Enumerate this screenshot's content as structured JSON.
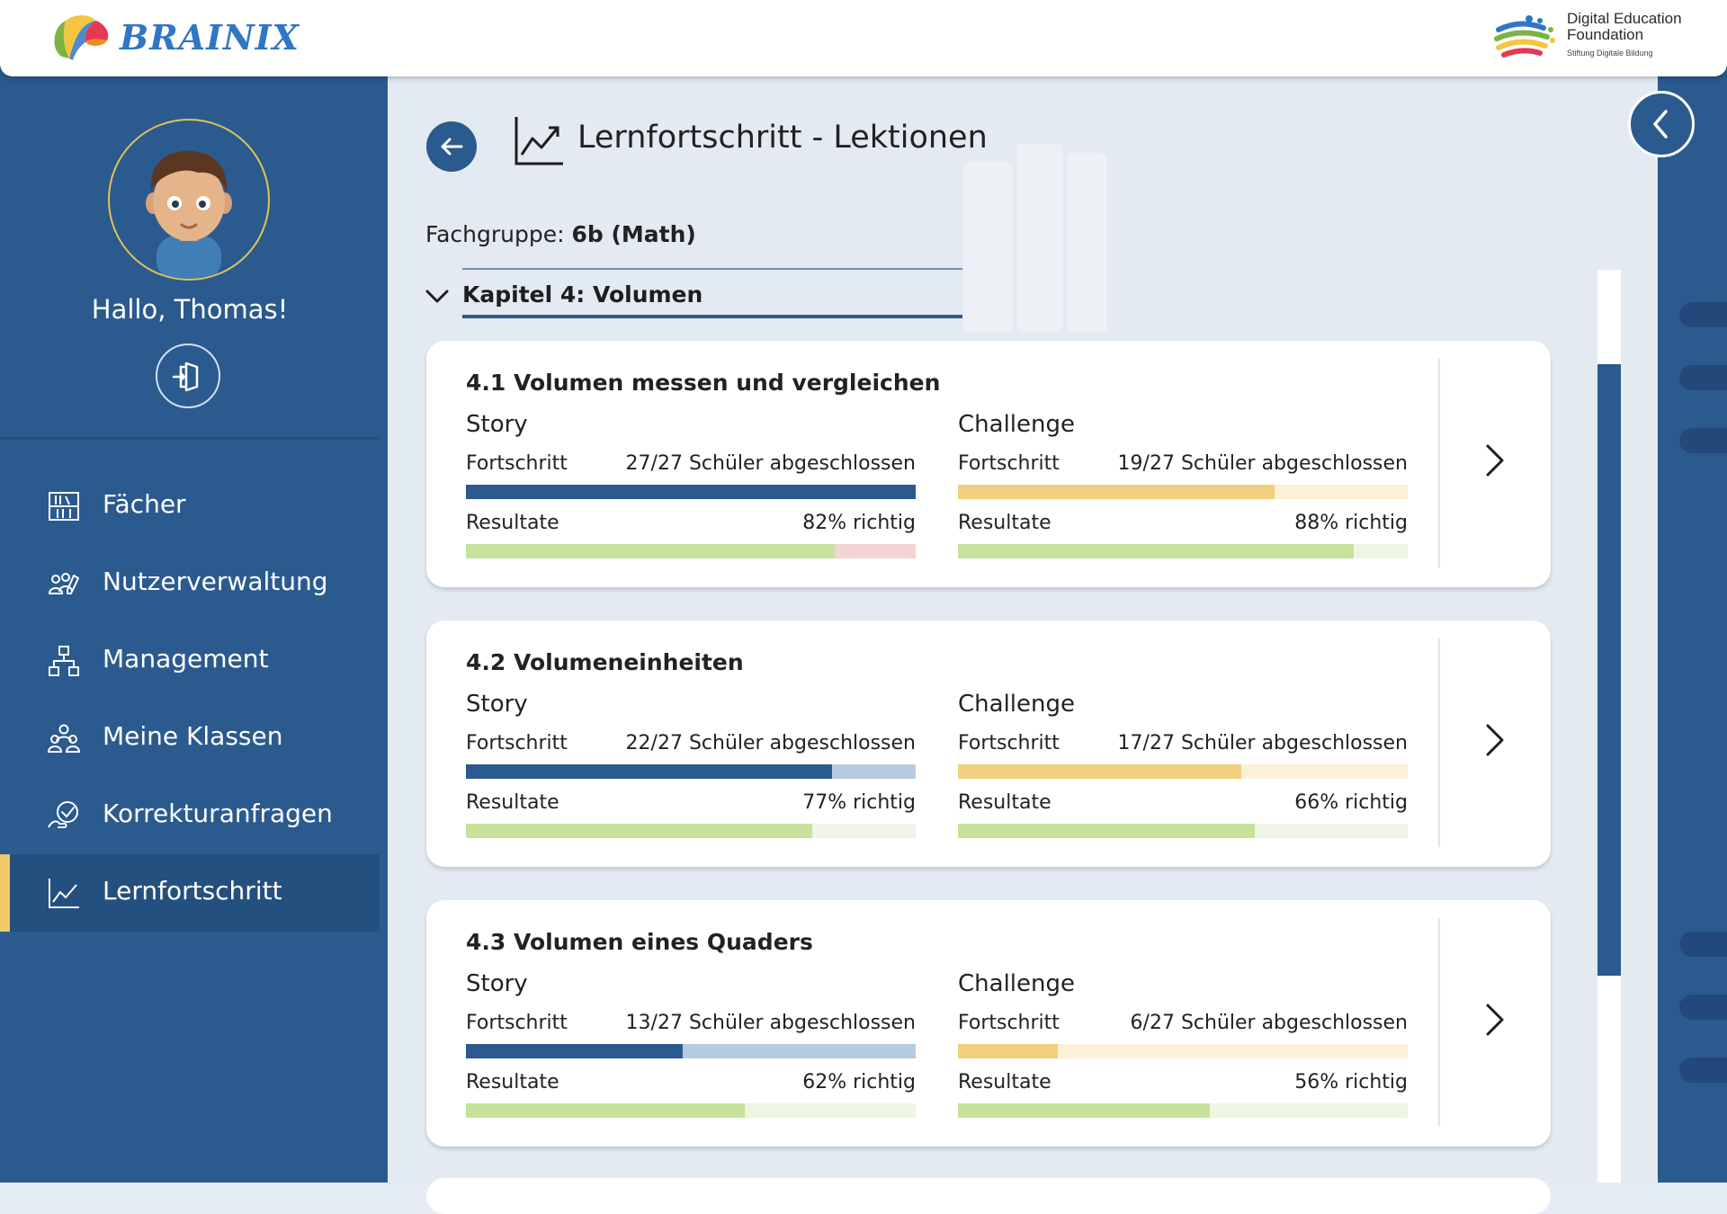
{
  "header": {
    "brand": "BRAINIX",
    "partner": {
      "line1": "Digital Education",
      "line2": "Foundation",
      "line3": "Stiftung Digitale Bildung"
    }
  },
  "sidebar": {
    "greeting": "Hallo, Thomas!",
    "items": [
      {
        "label": "Fächer",
        "icon": "book-shelf-icon"
      },
      {
        "label": "Nutzerverwaltung",
        "icon": "users-edit-icon"
      },
      {
        "label": "Management",
        "icon": "org-chart-icon"
      },
      {
        "label": "Meine Klassen",
        "icon": "class-group-icon"
      },
      {
        "label": "Korrekturanfragen",
        "icon": "check-request-icon"
      },
      {
        "label": "Lernfortschritt",
        "icon": "line-chart-icon",
        "active": true
      }
    ]
  },
  "main": {
    "title": "Lernfortschritt - Lektionen",
    "group_label": "Fachgruppe:",
    "group_value": "6b (Math)",
    "chapter": "Kapitel 4: Volumen",
    "lessons": [
      {
        "title": "4.1 Volumen messen und vergleichen",
        "story": {
          "heading": "Story",
          "progress_label": "Fortschritt",
          "progress_text": "27/27 Schüler abgeschlossen",
          "progress": 1.0,
          "results_label": "Resultate",
          "results_text": "82% richtig",
          "results": 0.82
        },
        "challenge": {
          "heading": "Challenge",
          "progress_label": "Fortschritt",
          "progress_text": "19/27 Schüler abgeschlossen",
          "progress": 0.7037,
          "results_label": "Resultate",
          "results_text": "88% richtig",
          "results": 0.88
        }
      },
      {
        "title": "4.2 Volumeneinheiten",
        "story": {
          "heading": "Story",
          "progress_label": "Fortschritt",
          "progress_text": "22/27 Schüler abgeschlossen",
          "progress": 0.8148,
          "results_label": "Resultate",
          "results_text": "77% richtig",
          "results": 0.77
        },
        "challenge": {
          "heading": "Challenge",
          "progress_label": "Fortschritt",
          "progress_text": "17/27 Schüler abgeschlossen",
          "progress": 0.6296,
          "results_label": "Resultate",
          "results_text": "66% richtig",
          "results": 0.66
        }
      },
      {
        "title": "4.3 Volumen eines Quaders",
        "story": {
          "heading": "Story",
          "progress_label": "Fortschritt",
          "progress_text": "13/27 Schüler abgeschlossen",
          "progress": 0.4815,
          "results_label": "Resultate",
          "results_text": "62% richtig",
          "results": 0.62
        },
        "challenge": {
          "heading": "Challenge",
          "progress_label": "Fortschritt",
          "progress_text": "6/27 Schüler abgeschlossen",
          "progress": 0.2222,
          "results_label": "Resultate",
          "results_text": "56% richtig",
          "results": 0.56
        }
      }
    ]
  },
  "colors": {
    "sidebar": "#2b5a8e",
    "accent": "#f2c96a",
    "story_progress": "#2b5a8e",
    "story_progress_track": "#b7cbe0",
    "challenge_progress": "#f2cf7e",
    "challenge_progress_track": "#fcf0d6",
    "results": "#c6e29b",
    "results_track": "#eef5e4",
    "results_track_low": "#f6d3d3"
  }
}
